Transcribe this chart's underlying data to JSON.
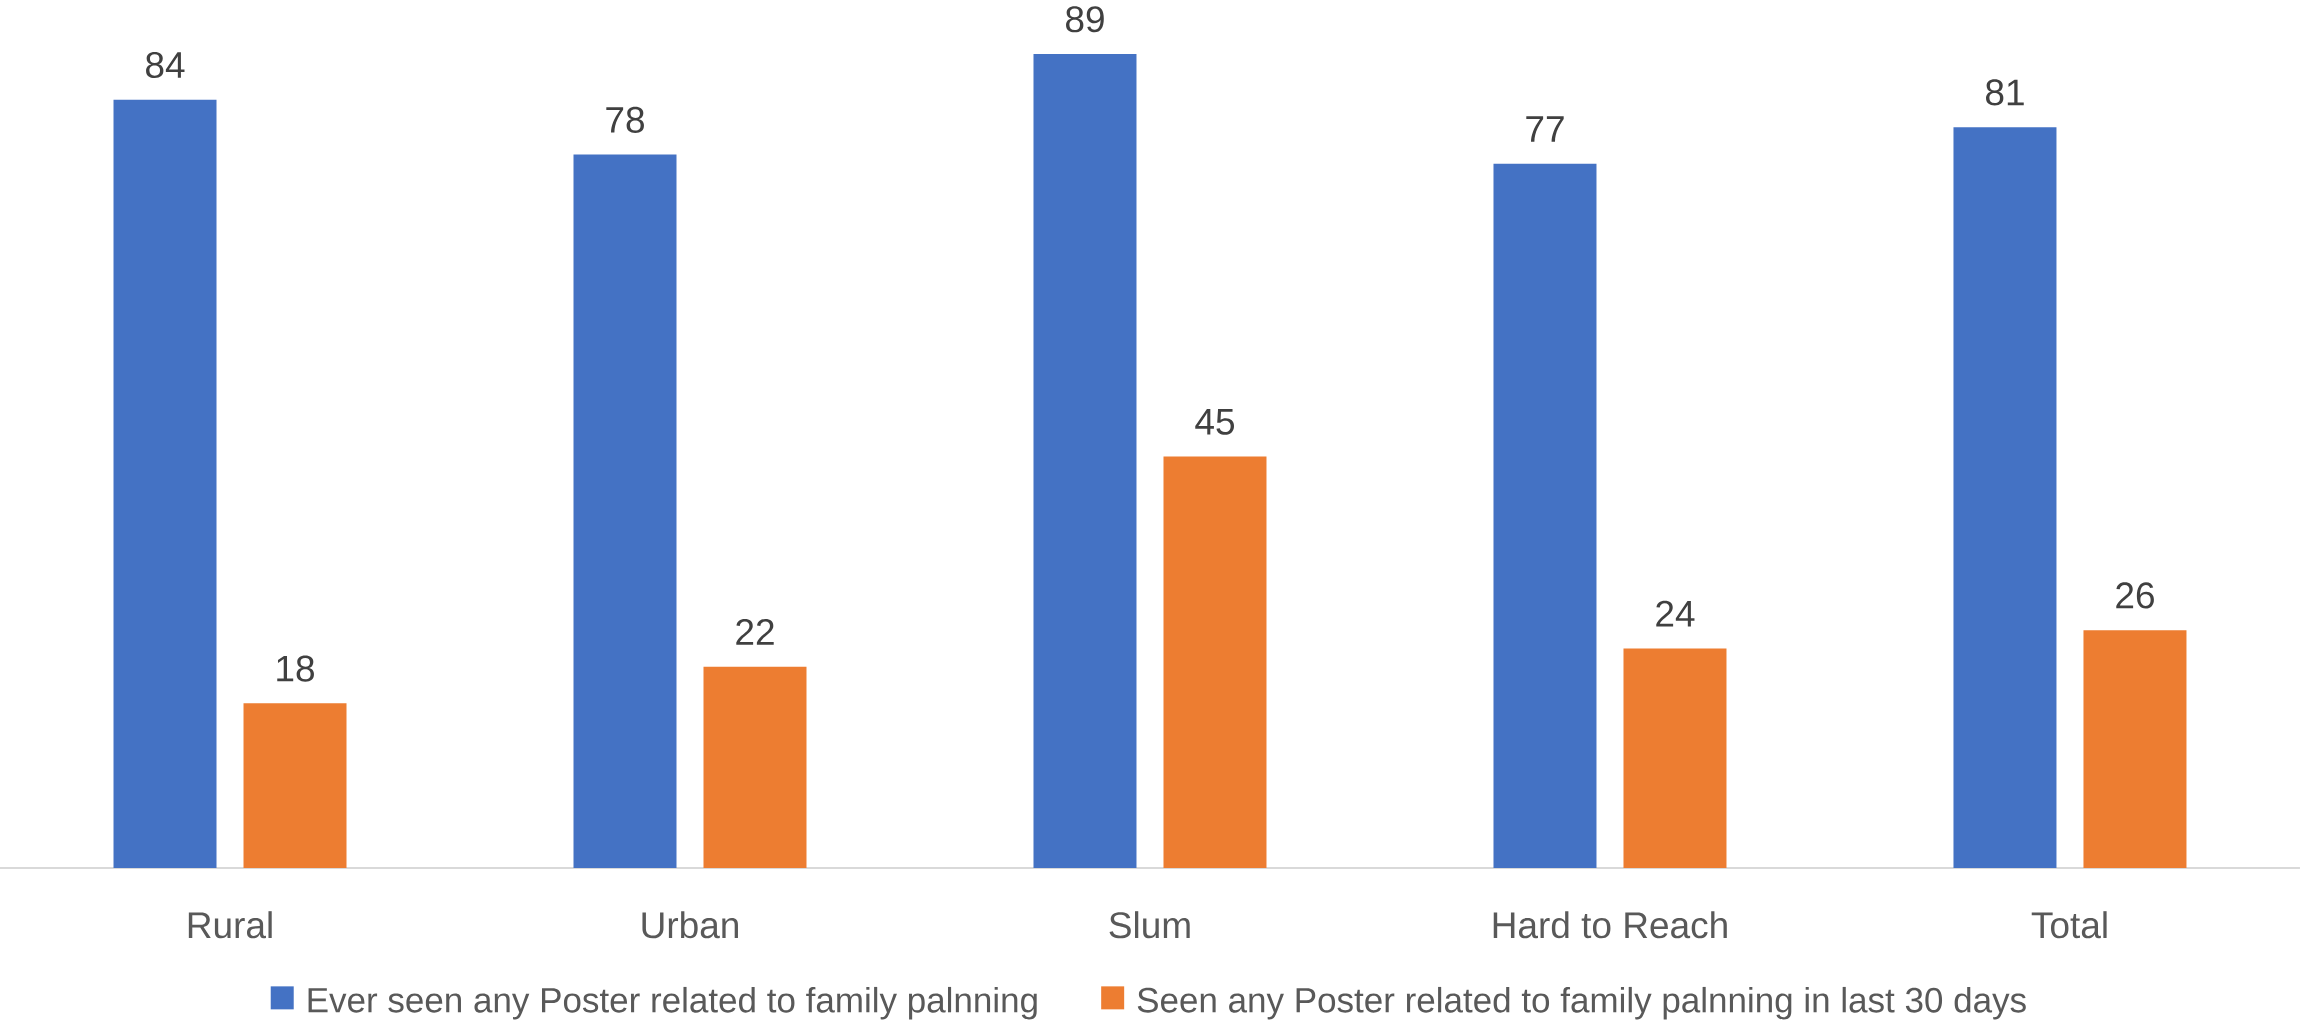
{
  "chart_data": {
    "type": "bar",
    "categories": [
      "Rural",
      "Urban",
      "Slum",
      "Hard to Reach",
      "Total"
    ],
    "series": [
      {
        "name": "Ever seen any Poster related to family palnning",
        "color": "#4472c4",
        "values": [
          84,
          78,
          89,
          77,
          81
        ]
      },
      {
        "name": "Seen any Poster related to family palnning in last 30 days",
        "color": "#ed7d31",
        "values": [
          18,
          22,
          45,
          24,
          26
        ]
      }
    ],
    "data_labels": true,
    "legend": "bottom"
  }
}
